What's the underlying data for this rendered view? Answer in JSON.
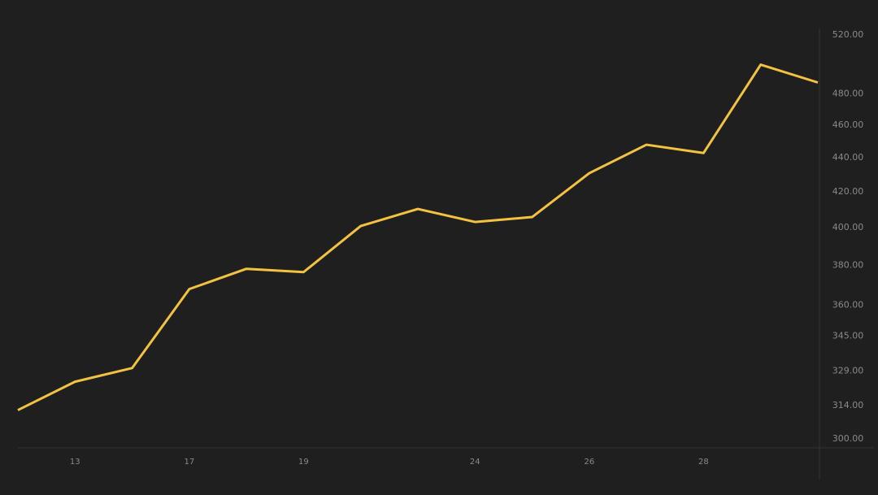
{
  "chart_data": {
    "type": "line",
    "categories": [
      null,
      "13",
      null,
      "17",
      null,
      "19",
      null,
      null,
      "24",
      null,
      "26",
      null,
      "28",
      null,
      null
    ],
    "series": [
      {
        "color": "#f2c240",
        "values": [
          312,
          324.3,
          330.4,
          367.9,
          378.2,
          376.5,
          400.9,
          410.3,
          403.1,
          405.8,
          430.8,
          447.8,
          442.8,
          499.4,
          487.4
        ]
      }
    ],
    "ylim": [
      300,
      520
    ],
    "log_scale": true,
    "yticks": [
      {
        "value": 300,
        "label": "300.00"
      },
      {
        "value": 314,
        "label": "314.00"
      },
      {
        "value": 329,
        "label": "329.00"
      },
      {
        "value": 345,
        "label": "345.00"
      },
      {
        "value": 360,
        "label": "360.00"
      },
      {
        "value": 380,
        "label": "380.00"
      },
      {
        "value": 400,
        "label": "400.00"
      },
      {
        "value": 420,
        "label": "420.00"
      },
      {
        "value": 440,
        "label": "440.00"
      },
      {
        "value": 460,
        "label": "460.00"
      },
      {
        "value": 480,
        "label": "480.00"
      },
      {
        "value": 520,
        "label": "520.00"
      }
    ]
  }
}
